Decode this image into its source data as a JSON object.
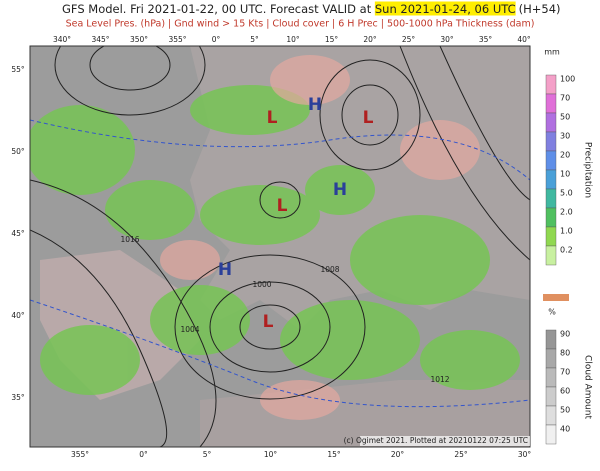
{
  "header": {
    "title_prefix": "GFS Model. Fri 2021-01-22, 00 UTC. Forecast VALID at ",
    "valid_time": "Sun 2021-01-24, 06 UTC",
    "lead": "(H+54)",
    "subtitle": "Sea Level Pres. (hPa) | Gnd wind > 15 Kts | Cloud cover | 6 H Prec | 500-1000 hPa Thickness (dam)"
  },
  "map": {
    "top_lon_labels": [
      "340°",
      "345°",
      "350°",
      "355°",
      "0°",
      "5°",
      "10°",
      "15°",
      "20°",
      "25°",
      "30°",
      "35°",
      "40°"
    ],
    "bottom_lon_labels": [
      "355°",
      "0°",
      "5°",
      "10°",
      "15°",
      "20°",
      "25°",
      "30°"
    ],
    "left_lat_labels": [
      "55°",
      "50°",
      "45°",
      "40°",
      "35°"
    ],
    "pressure_centers": [
      {
        "label": "H"
      },
      {
        "label": "L"
      },
      {
        "label": "L"
      },
      {
        "label": "H"
      },
      {
        "label": "L"
      },
      {
        "label": "H"
      },
      {
        "label": "L"
      }
    ],
    "isobar_labels": [
      "1000",
      "1004",
      "1008",
      "1012",
      "1016"
    ],
    "credit": "(c) Ogimet 2021. Plotted at 20210122 07:25 UTC"
  },
  "precipitation_scale": {
    "unit": "mm",
    "title": "Precipitation",
    "labels": [
      "100",
      "70",
      "50",
      "30",
      "20",
      "10",
      "5.0",
      "2.0",
      "1.0",
      "0.2"
    ]
  },
  "cloud_scale": {
    "unit": "%",
    "title": "Cloud Amount",
    "labels": [
      "90",
      "80",
      "70",
      "60",
      "50",
      "40"
    ]
  }
}
